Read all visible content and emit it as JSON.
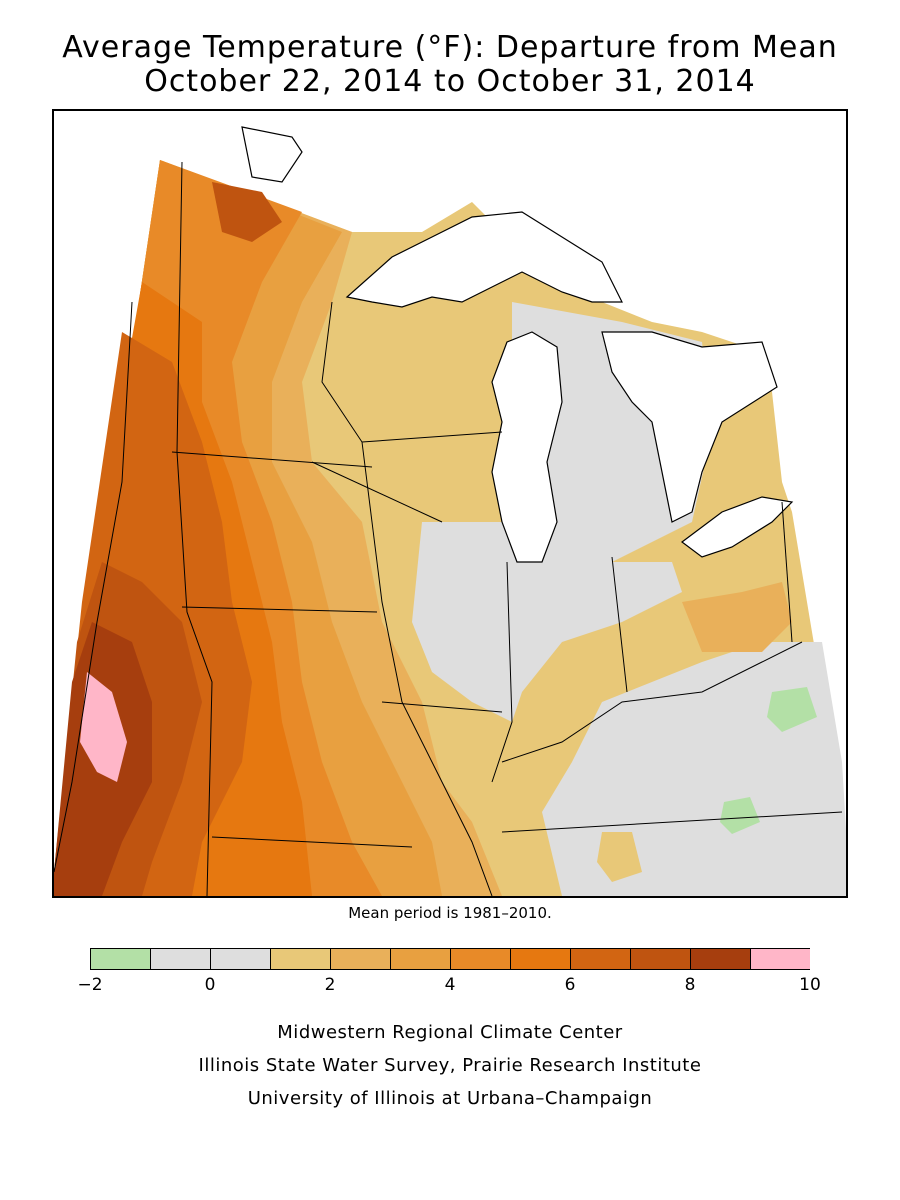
{
  "title_line1": "Average Temperature (°F): Departure from Mean",
  "title_line2": "October 22, 2014 to October 31, 2014",
  "mean_period": "Mean period is 1981–2010.",
  "legend": {
    "bins": [
      {
        "from": -2,
        "to": -1,
        "color": "#b3e0a6"
      },
      {
        "from": -1,
        "to": 0,
        "color": "#dedede"
      },
      {
        "from": 0,
        "to": 1,
        "color": "#dedede"
      },
      {
        "from": 1,
        "to": 2,
        "color": "#e8c878"
      },
      {
        "from": 2,
        "to": 3,
        "color": "#e9b05a"
      },
      {
        "from": 3,
        "to": 4,
        "color": "#e8a040"
      },
      {
        "from": 4,
        "to": 5,
        "color": "#e88a28"
      },
      {
        "from": 5,
        "to": 6,
        "color": "#e67810"
      },
      {
        "from": 6,
        "to": 7,
        "color": "#d26512"
      },
      {
        "from": 7,
        "to": 8,
        "color": "#bf5410"
      },
      {
        "from": 8,
        "to": 9,
        "color": "#a63e0e"
      },
      {
        "from": 9,
        "to": 10,
        "color": "#ffb6c8"
      }
    ],
    "tick_labels": [
      "−2",
      "0",
      "2",
      "4",
      "6",
      "8",
      "10"
    ]
  },
  "map_colors": {
    "lakes": "#ffffff",
    "outline": "#000000",
    "green": "#b3e0a6",
    "gray": "#dedede",
    "light_tan": "#e8c878",
    "tan": "#e9b05a",
    "orange_light": "#e8a040",
    "orange": "#e88a28",
    "orange_bright": "#e67810",
    "rust": "#d26512",
    "rust_dark": "#bf5410",
    "brown": "#a63e0e",
    "pink": "#ffb6c8"
  },
  "credits": {
    "line1": "Midwestern Regional Climate Center",
    "line2": "Illinois State Water Survey, Prairie Research Institute",
    "line3": "University of Illinois at Urbana–Champaign"
  }
}
